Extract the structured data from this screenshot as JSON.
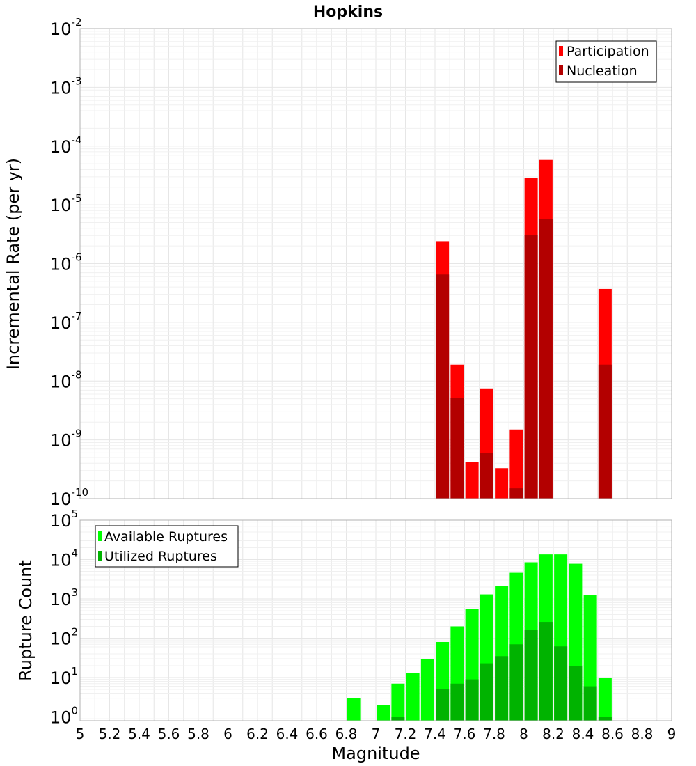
{
  "title": "Hopkins",
  "colors": {
    "participation": "#ff0000",
    "nucleation": "#b30000",
    "available": "#00ff00",
    "utilized": "#00b300"
  },
  "chart_data": [
    {
      "type": "bar",
      "panel": "top",
      "xlabel": "Magnitude",
      "ylabel": "Incremental Rate (per yr)",
      "xlim": [
        5,
        9
      ],
      "ylim": [
        1e-10,
        0.01
      ],
      "yscale": "log",
      "grid": true,
      "legend_position": "top-right",
      "x": [
        7.45,
        7.55,
        7.65,
        7.75,
        7.85,
        7.95,
        8.05,
        8.15,
        8.55
      ],
      "series": [
        {
          "name": "Participation",
          "values": [
            2.4e-06,
            1.9e-08,
            4.2e-10,
            7.5e-09,
            3.3e-10,
            1.5e-09,
            2.9e-05,
            5.8e-05,
            3.7e-07
          ]
        },
        {
          "name": "Nucleation",
          "values": [
            6.5e-07,
            5.2e-09,
            0,
            6e-10,
            0,
            1.5e-10,
            3.1e-06,
            5.8e-06,
            1.9e-08
          ]
        }
      ]
    },
    {
      "type": "bar",
      "panel": "bottom",
      "xlabel": "Magnitude",
      "ylabel": "Rupture Count",
      "xlim": [
        5,
        9
      ],
      "ylim": [
        0.8,
        100000
      ],
      "yscale": "log",
      "grid": true,
      "legend_position": "top-left",
      "x": [
        6.85,
        7.05,
        7.15,
        7.25,
        7.35,
        7.45,
        7.55,
        7.65,
        7.75,
        7.85,
        7.95,
        8.05,
        8.15,
        8.25,
        8.35,
        8.45,
        8.55
      ],
      "series": [
        {
          "name": "Available Ruptures",
          "values": [
            3,
            2,
            7,
            13,
            30,
            80,
            200,
            550,
            1300,
            2100,
            4600,
            8500,
            13500,
            13500,
            7800,
            1250,
            10
          ]
        },
        {
          "name": "Utilized Ruptures",
          "values": [
            0,
            0,
            1,
            0,
            0,
            5,
            7,
            9,
            23,
            35,
            70,
            165,
            260,
            62,
            20,
            6,
            1
          ]
        }
      ]
    }
  ],
  "x_ticks": [
    "5",
    "5.2",
    "5.4",
    "5.6",
    "5.8",
    "6",
    "6.2",
    "6.4",
    "6.6",
    "6.8",
    "7",
    "7.2",
    "7.4",
    "7.6",
    "7.8",
    "8",
    "8.2",
    "8.4",
    "8.6",
    "8.8",
    "9"
  ],
  "top_y_ticks": [
    {
      "base": "10",
      "exp": "-2"
    },
    {
      "base": "10",
      "exp": "-3"
    },
    {
      "base": "10",
      "exp": "-4"
    },
    {
      "base": "10",
      "exp": "-5"
    },
    {
      "base": "10",
      "exp": "-6"
    },
    {
      "base": "10",
      "exp": "-7"
    },
    {
      "base": "10",
      "exp": "-8"
    },
    {
      "base": "10",
      "exp": "-9"
    },
    {
      "base": "10",
      "exp": "-10"
    }
  ],
  "bottom_y_ticks": [
    {
      "base": "10",
      "exp": "5"
    },
    {
      "base": "10",
      "exp": "4"
    },
    {
      "base": "10",
      "exp": "3"
    },
    {
      "base": "10",
      "exp": "2"
    },
    {
      "base": "10",
      "exp": "1"
    },
    {
      "base": "10",
      "exp": "0"
    }
  ]
}
